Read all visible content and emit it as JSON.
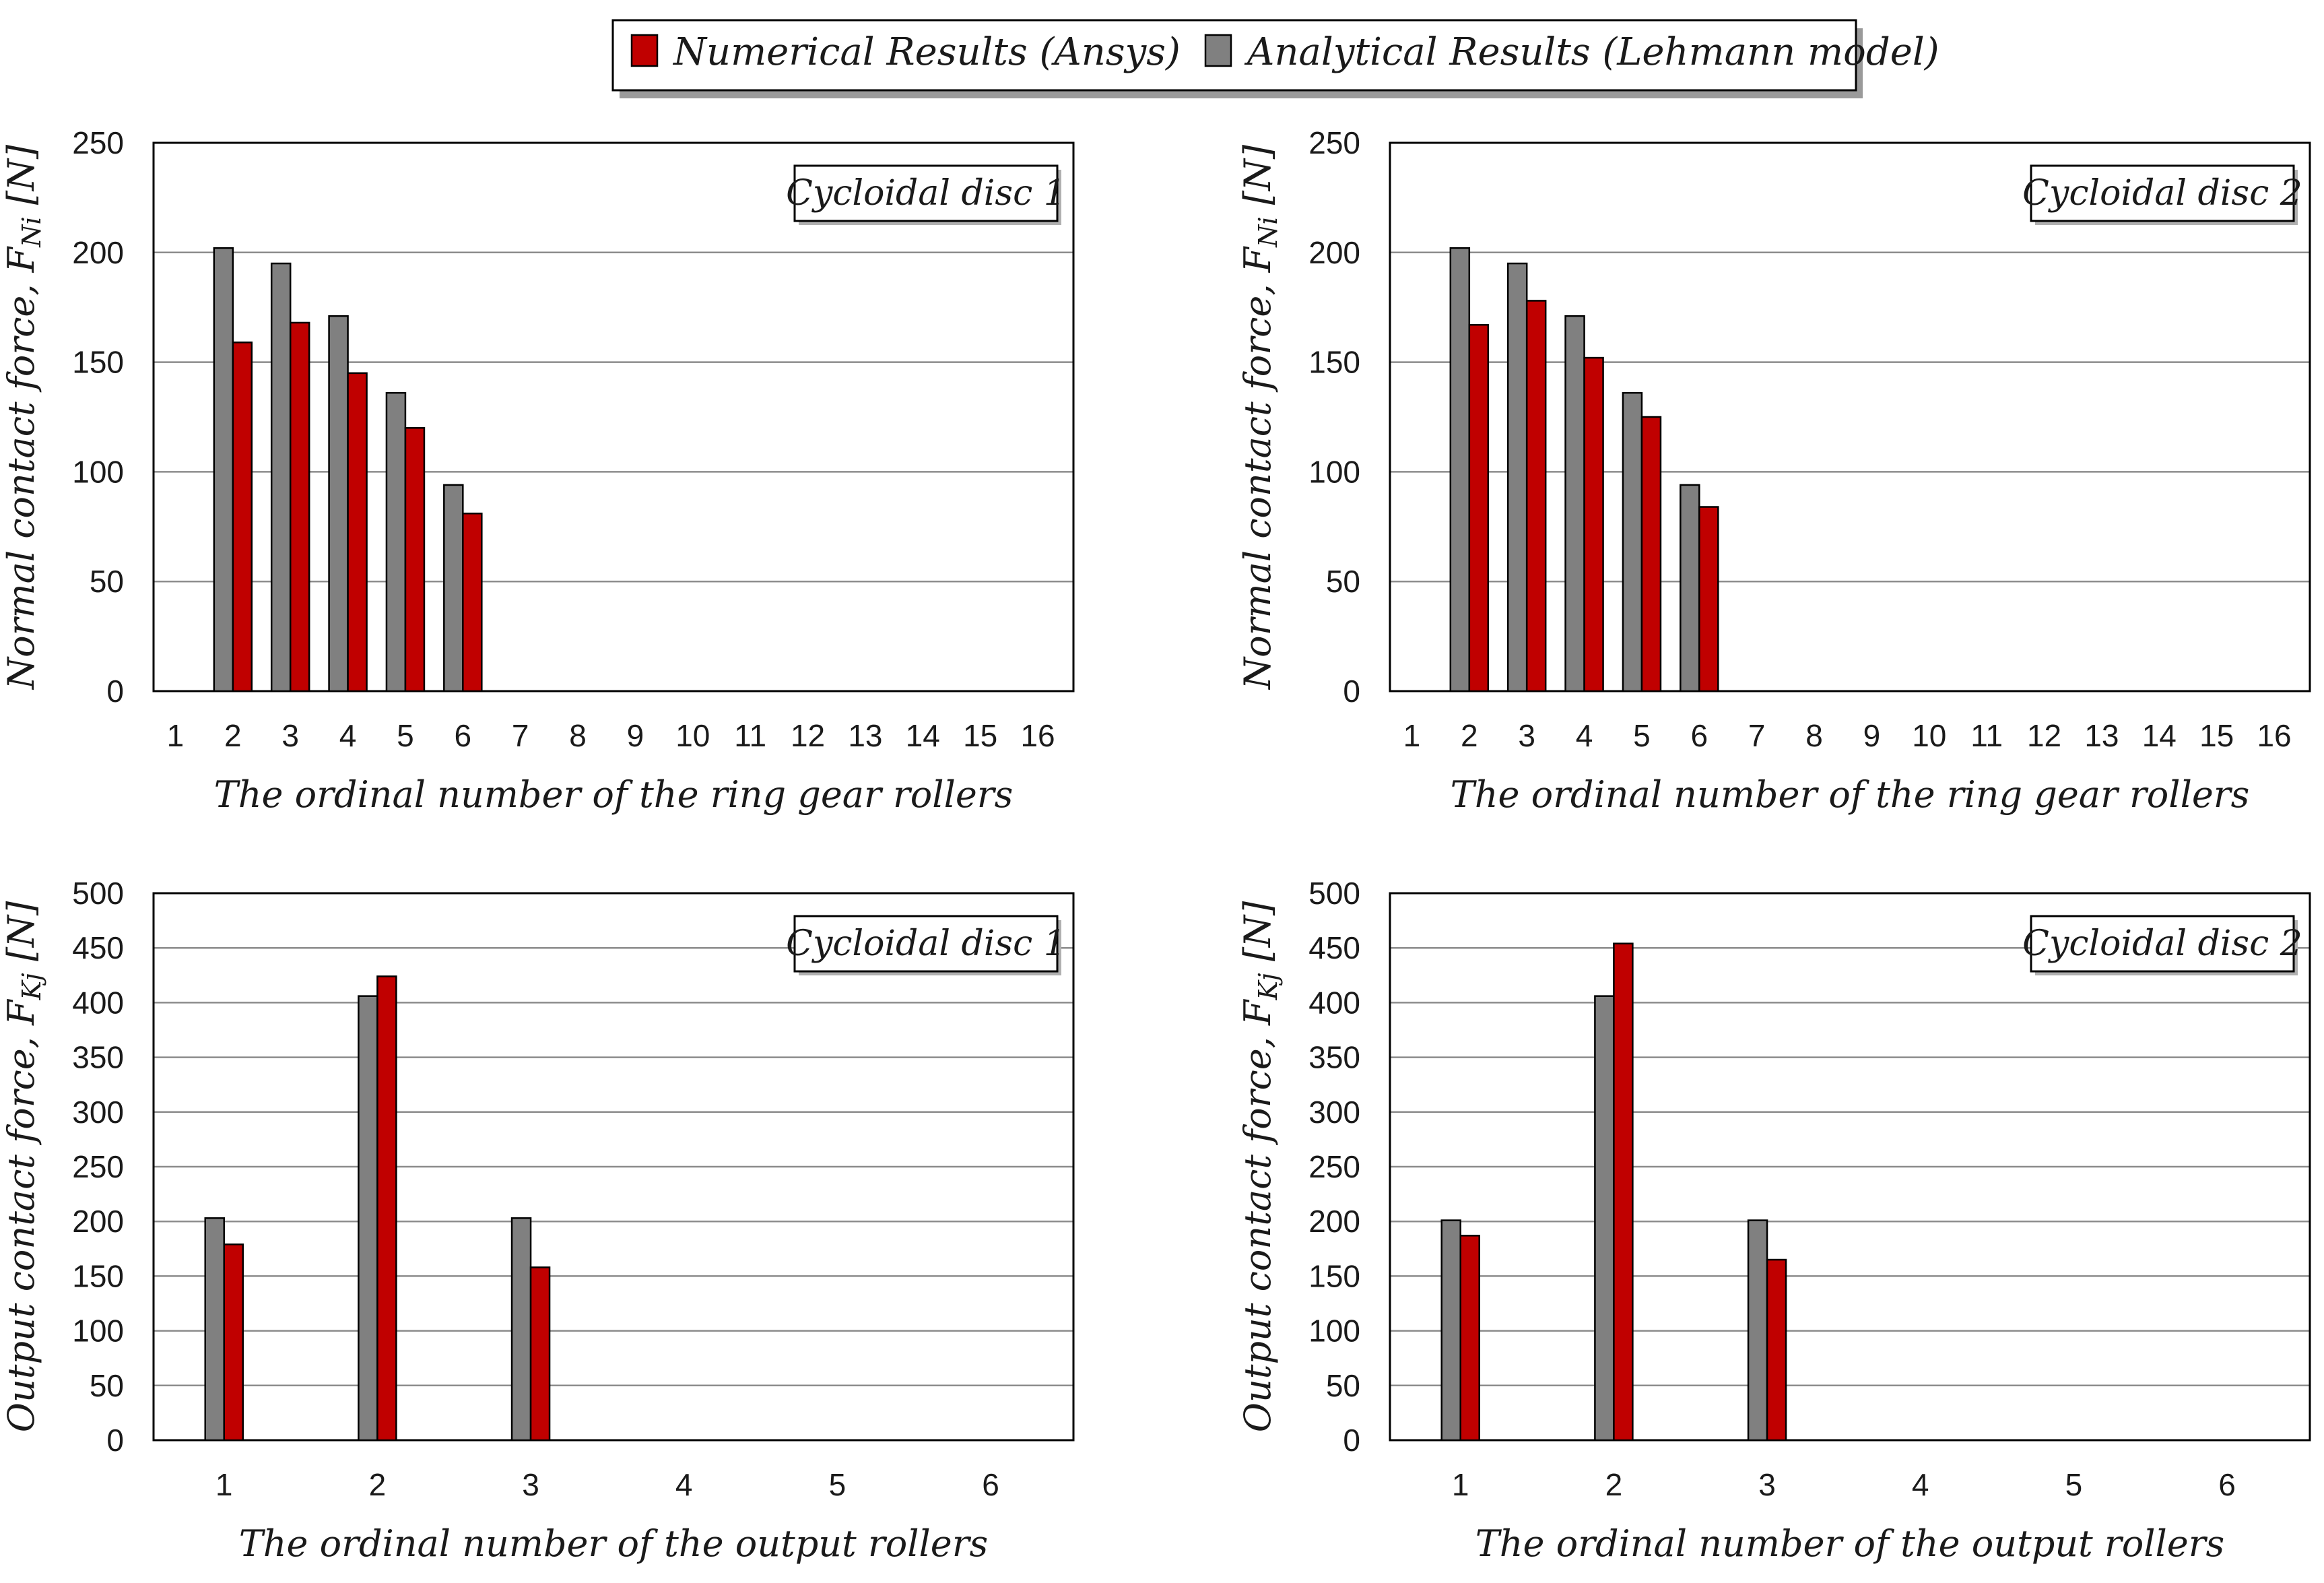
{
  "legend": {
    "numerical": "Numerical Results (Ansys)",
    "analytical": "Analytical Results (Lehmann model)"
  },
  "colors": {
    "numerical": "#c00000",
    "analytical": "#808080"
  },
  "chart_data": [
    {
      "type": "bar",
      "tag": "Cycloidal disc 1",
      "ylabel_main": "Normal contact force, F",
      "ylabel_sub": "Ni",
      "ylabel_unit": " [N]",
      "xlabel": "The ordinal number of the ring gear rollers",
      "categories": [
        "1",
        "2",
        "3",
        "4",
        "5",
        "6",
        "7",
        "8",
        "9",
        "10",
        "11",
        "12",
        "13",
        "14",
        "15",
        "16"
      ],
      "ylim": [
        0,
        250
      ],
      "yticks": [
        0,
        50,
        100,
        150,
        200,
        250
      ],
      "series": [
        {
          "name": "Analytical Results (Lehmann model)",
          "key": "analytical",
          "values": [
            0,
            202,
            195,
            171,
            136,
            94,
            0,
            0,
            0,
            0,
            0,
            0,
            0,
            0,
            0,
            0
          ]
        },
        {
          "name": "Numerical Results (Ansys)",
          "key": "numerical",
          "values": [
            0,
            159,
            168,
            145,
            120,
            81,
            0,
            0,
            0,
            0,
            0,
            0,
            0,
            0,
            0,
            0
          ]
        }
      ]
    },
    {
      "type": "bar",
      "tag": "Cycloidal disc 2",
      "ylabel_main": "Normal contact force, F",
      "ylabel_sub": "Ni",
      "ylabel_unit": " [N]",
      "xlabel": "The ordinal number of the ring gear rollers",
      "categories": [
        "1",
        "2",
        "3",
        "4",
        "5",
        "6",
        "7",
        "8",
        "9",
        "10",
        "11",
        "12",
        "13",
        "14",
        "15",
        "16"
      ],
      "ylim": [
        0,
        250
      ],
      "yticks": [
        0,
        50,
        100,
        150,
        200,
        250
      ],
      "series": [
        {
          "name": "Analytical Results (Lehmann model)",
          "key": "analytical",
          "values": [
            0,
            202,
            195,
            171,
            136,
            94,
            0,
            0,
            0,
            0,
            0,
            0,
            0,
            0,
            0,
            0
          ]
        },
        {
          "name": "Numerical Results (Ansys)",
          "key": "numerical",
          "values": [
            0,
            167,
            178,
            152,
            125,
            84,
            0,
            0,
            0,
            0,
            0,
            0,
            0,
            0,
            0,
            0
          ]
        }
      ]
    },
    {
      "type": "bar",
      "tag": "Cycloidal disc 1",
      "ylabel_main": "Output contact force, F",
      "ylabel_sub": "Kj",
      "ylabel_unit": " [N]",
      "xlabel": "The ordinal number of the output rollers",
      "categories": [
        "1",
        "2",
        "3",
        "4",
        "5",
        "6"
      ],
      "ylim": [
        0,
        500
      ],
      "yticks": [
        0,
        50,
        100,
        150,
        200,
        250,
        300,
        350,
        400,
        450,
        500
      ],
      "series": [
        {
          "name": "Analytical Results (Lehmann model)",
          "key": "analytical",
          "values": [
            203,
            406,
            203,
            0,
            0,
            0
          ]
        },
        {
          "name": "Numerical Results (Ansys)",
          "key": "numerical",
          "values": [
            179,
            424,
            158,
            0,
            0,
            0
          ]
        }
      ]
    },
    {
      "type": "bar",
      "tag": "Cycloidal disc 2",
      "ylabel_main": "Output contact force, F",
      "ylabel_sub": "Kj",
      "ylabel_unit": " [N]",
      "xlabel": "The ordinal number of the output rollers",
      "categories": [
        "1",
        "2",
        "3",
        "4",
        "5",
        "6"
      ],
      "ylim": [
        0,
        500
      ],
      "yticks": [
        0,
        50,
        100,
        150,
        200,
        250,
        300,
        350,
        400,
        450,
        500
      ],
      "series": [
        {
          "name": "Analytical Results (Lehmann model)",
          "key": "analytical",
          "values": [
            201,
            406,
            201,
            0,
            0,
            0
          ]
        },
        {
          "name": "Numerical Results (Ansys)",
          "key": "numerical",
          "values": [
            187,
            454,
            165,
            0,
            0,
            0
          ]
        }
      ]
    }
  ]
}
